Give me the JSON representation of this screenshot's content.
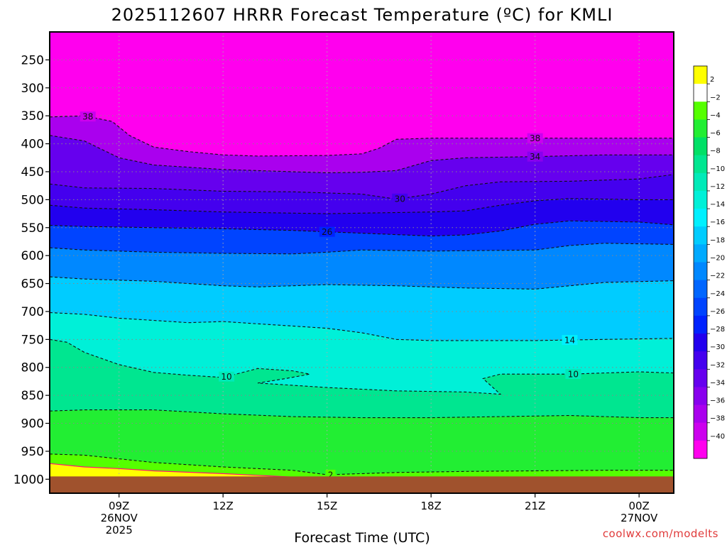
{
  "chart_data": {
    "type": "heatmap",
    "title": "2025112607 HRRR Forecast Temperature (ºC) for KMLI",
    "xlabel": "Forecast Time (UTC)",
    "ylabel": "",
    "credit": "coolwx.com/modelts",
    "x_range_hours": [
      7,
      25
    ],
    "y_range_hPa": [
      200,
      1025
    ],
    "y_ticks": [
      250,
      300,
      350,
      400,
      450,
      500,
      550,
      600,
      650,
      700,
      750,
      800,
      850,
      900,
      950,
      1000
    ],
    "y_tick_labels": [
      "250",
      "300",
      "350",
      "400",
      "450",
      "500",
      "550",
      "600",
      "650",
      "700",
      "750",
      "800",
      "850",
      "900",
      "950",
      "1000"
    ],
    "x_ticks": [
      {
        "h": 9,
        "lines": [
          "09Z",
          "26NOV",
          "2025"
        ]
      },
      {
        "h": 12,
        "lines": [
          "12Z"
        ]
      },
      {
        "h": 15,
        "lines": [
          "15Z"
        ]
      },
      {
        "h": 18,
        "lines": [
          "18Z"
        ]
      },
      {
        "h": 21,
        "lines": [
          "21Z"
        ]
      },
      {
        "h": 24,
        "lines": [
          "00Z",
          "27NOV"
        ]
      }
    ],
    "grid": true,
    "legend": "right",
    "colorbar": {
      "labels": [
        2,
        -2,
        -4,
        -6,
        -8,
        -10,
        -12,
        -14,
        -16,
        -18,
        -20,
        -22,
        -24,
        -26,
        -28,
        -30,
        -32,
        -34,
        -36,
        -38,
        -40
      ],
      "colors": [
        "#ffff00",
        "#ffffff",
        "#55ff00",
        "#22ee33",
        "#00e066",
        "#00e690",
        "#00eab8",
        "#00f0d8",
        "#00f0ff",
        "#00ccff",
        "#00aaff",
        "#0088ff",
        "#0066ff",
        "#0044ff",
        "#0022ff",
        "#2200ee",
        "#4400ee",
        "#6600ee",
        "#8800ee",
        "#aa00ee",
        "#cc00ee",
        "#ff00ee"
      ]
    },
    "isotherms": [
      {
        "temp": -38,
        "points": [
          [
            7,
            352
          ],
          [
            8,
            350
          ],
          [
            8.8,
            360
          ],
          [
            9.3,
            385
          ],
          [
            10,
            406
          ],
          [
            11,
            414
          ],
          [
            12,
            420
          ],
          [
            13,
            422
          ],
          [
            15,
            421
          ],
          [
            16,
            418
          ],
          [
            16.5,
            408
          ],
          [
            17,
            392
          ],
          [
            18,
            390
          ],
          [
            21,
            390
          ],
          [
            23,
            390
          ],
          [
            25,
            390
          ]
        ],
        "labels": [
          {
            "h": 8.1,
            "text": "38"
          },
          {
            "h": 21,
            "text": "38"
          }
        ]
      },
      {
        "temp": -34,
        "points": [
          [
            7,
            385
          ],
          [
            8,
            395
          ],
          [
            9,
            425
          ],
          [
            10,
            438
          ],
          [
            12,
            446
          ],
          [
            14,
            450
          ],
          [
            15,
            452
          ],
          [
            16,
            451
          ],
          [
            17,
            448
          ],
          [
            18,
            430
          ],
          [
            19,
            425
          ],
          [
            21,
            423
          ],
          [
            23,
            420
          ],
          [
            25,
            420
          ]
        ],
        "labels": [
          {
            "h": 21,
            "text": "34"
          }
        ]
      },
      {
        "temp": -30,
        "points": [
          [
            7,
            472
          ],
          [
            8,
            479
          ],
          [
            10,
            480
          ],
          [
            12,
            485
          ],
          [
            14,
            486
          ],
          [
            16,
            490
          ],
          [
            17,
            499
          ],
          [
            18,
            490
          ],
          [
            19,
            475
          ],
          [
            20,
            468
          ],
          [
            22,
            467
          ],
          [
            24,
            463
          ],
          [
            25,
            455
          ]
        ],
        "labels": [
          {
            "h": 17.1,
            "text": "30"
          }
        ]
      },
      {
        "temp": -28,
        "points": [
          [
            7,
            510
          ],
          [
            8,
            515
          ],
          [
            10,
            518
          ],
          [
            12,
            522
          ],
          [
            15,
            525
          ],
          [
            18,
            522
          ],
          [
            19,
            520
          ],
          [
            20,
            510
          ],
          [
            21,
            502
          ],
          [
            22,
            498
          ],
          [
            24,
            500
          ],
          [
            25,
            500
          ]
        ],
        "labels": []
      },
      {
        "temp": -26,
        "points": [
          [
            7,
            546
          ],
          [
            8,
            548
          ],
          [
            10,
            550
          ],
          [
            12,
            552
          ],
          [
            14,
            555
          ],
          [
            16,
            560
          ],
          [
            18,
            565
          ],
          [
            19,
            563
          ],
          [
            20,
            556
          ],
          [
            21,
            544
          ],
          [
            22,
            538
          ],
          [
            24,
            540
          ],
          [
            25,
            545
          ]
        ],
        "labels": [
          {
            "h": 15,
            "text": "26"
          }
        ]
      },
      {
        "temp": -22,
        "points": [
          [
            7,
            586
          ],
          [
            8,
            590
          ],
          [
            10,
            594
          ],
          [
            12,
            596
          ],
          [
            14,
            597
          ],
          [
            15,
            594
          ],
          [
            16,
            590
          ],
          [
            18,
            592
          ],
          [
            21,
            590
          ],
          [
            22,
            582
          ],
          [
            23,
            578
          ],
          [
            25,
            580
          ]
        ],
        "labels": []
      },
      {
        "temp": -18,
        "points": [
          [
            7,
            638
          ],
          [
            8,
            642
          ],
          [
            10,
            646
          ],
          [
            12,
            654
          ],
          [
            13,
            656
          ],
          [
            15,
            652
          ],
          [
            17,
            654
          ],
          [
            19,
            658
          ],
          [
            21,
            660
          ],
          [
            22,
            654
          ],
          [
            23,
            648
          ],
          [
            25,
            645
          ]
        ],
        "labels": []
      },
      {
        "temp": -14,
        "points": [
          [
            7,
            702
          ],
          [
            8,
            705
          ],
          [
            9,
            712
          ],
          [
            10,
            716
          ],
          [
            11,
            720
          ],
          [
            12,
            718
          ],
          [
            13,
            722
          ],
          [
            14,
            726
          ],
          [
            15,
            730
          ],
          [
            16,
            738
          ],
          [
            17,
            750
          ],
          [
            18,
            752
          ],
          [
            21,
            752
          ],
          [
            23,
            750
          ],
          [
            25,
            748
          ]
        ],
        "labels": [
          {
            "h": 22,
            "text": "14"
          }
        ]
      },
      {
        "temp": -10,
        "points": [
          [
            7,
            750
          ],
          [
            7.5,
            755
          ],
          [
            8,
            773
          ],
          [
            9,
            795
          ],
          [
            10,
            809
          ],
          [
            11,
            814
          ],
          [
            12,
            818
          ],
          [
            13,
            802
          ],
          [
            14,
            806
          ],
          [
            14.5,
            812
          ],
          [
            13.8,
            820
          ],
          [
            13,
            828
          ],
          [
            14,
            832
          ],
          [
            15,
            836
          ],
          [
            17,
            842
          ],
          [
            19,
            844
          ],
          [
            20,
            848
          ],
          [
            19.5,
            820
          ],
          [
            20,
            812
          ],
          [
            21,
            812
          ],
          [
            22,
            812
          ],
          [
            23,
            810
          ],
          [
            24,
            808
          ],
          [
            25,
            810
          ]
        ],
        "labels": [
          {
            "h": 12.1,
            "text": "10"
          },
          {
            "h": 22.1,
            "text": "10"
          }
        ]
      },
      {
        "temp": -6,
        "points": [
          [
            7,
            878
          ],
          [
            8,
            876
          ],
          [
            10,
            876
          ],
          [
            12,
            883
          ],
          [
            14,
            888
          ],
          [
            16,
            890
          ],
          [
            18,
            890
          ],
          [
            20,
            888
          ],
          [
            22,
            886
          ],
          [
            24,
            890
          ],
          [
            25,
            890
          ]
        ],
        "labels": []
      },
      {
        "temp": -2,
        "points": [
          [
            7,
            955
          ],
          [
            8,
            957
          ],
          [
            10,
            970
          ],
          [
            12,
            978
          ],
          [
            14,
            984
          ],
          [
            15,
            992
          ],
          [
            17,
            988
          ],
          [
            19,
            986
          ],
          [
            21,
            985
          ],
          [
            23,
            984
          ],
          [
            25,
            984
          ]
        ],
        "labels": [
          {
            "h": 15.1,
            "text": "2"
          }
        ]
      }
    ],
    "zero_line": {
      "temp": 0,
      "points": [
        [
          7,
          972
        ],
        [
          8,
          978
        ],
        [
          9,
          981
        ],
        [
          10,
          985
        ],
        [
          12,
          990
        ],
        [
          13,
          993
        ],
        [
          14,
          996
        ],
        [
          15,
          999
        ]
      ]
    },
    "ground": {
      "pressure_hPa": 995
    }
  }
}
